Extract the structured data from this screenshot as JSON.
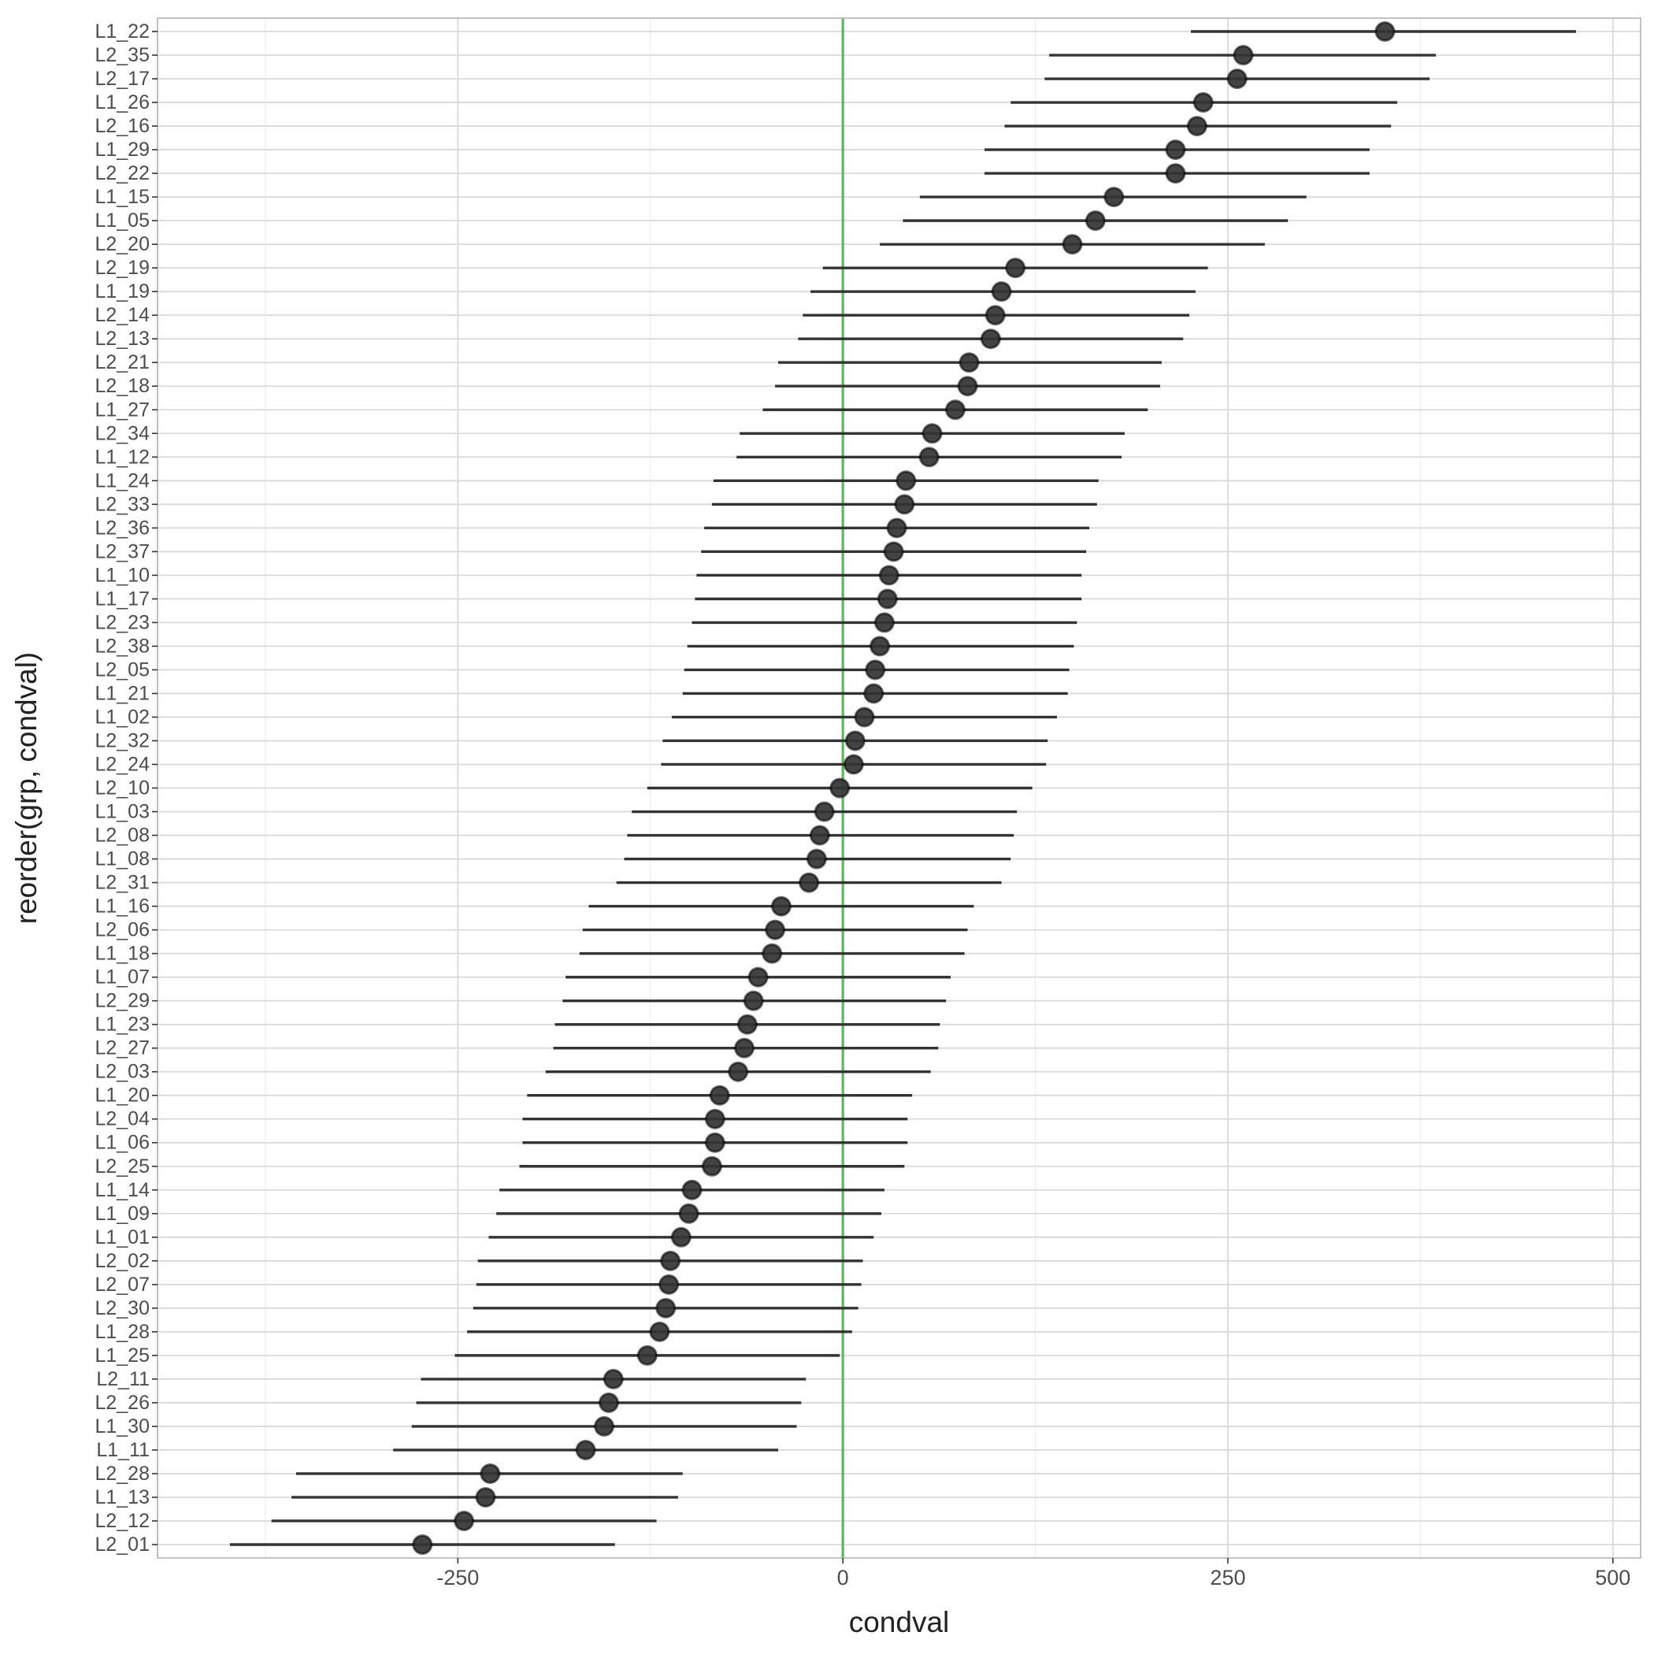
{
  "chart_data": {
    "type": "scatter",
    "subtype": "caterpillar / forest plot with horizontal interval bars",
    "title": "",
    "xlabel": "condval",
    "ylabel": "reorder(grp, condval)",
    "xlim": [
      -445,
      518
    ],
    "xticks": [
      -250,
      0,
      250,
      500
    ],
    "xtick_labels": [
      "-250",
      "0",
      "250",
      "500"
    ],
    "reference_line": {
      "x": 0,
      "color": "#5cb85c"
    },
    "grid": true,
    "legend": "none",
    "colors": {
      "point": "#333333",
      "interval": "#333333",
      "grid": "#d9d9d9",
      "panel_border": "#b3b3b3",
      "text": "#222222",
      "tick_text": "#4d4d4d",
      "reference": "#5cb85c"
    },
    "groups": [
      {
        "grp": "L1_22",
        "condval": 352,
        "lower": 226,
        "upper": 476
      },
      {
        "grp": "L2_35",
        "condval": 260,
        "lower": 134,
        "upper": 385
      },
      {
        "grp": "L2_17",
        "condval": 256,
        "lower": 131,
        "upper": 381
      },
      {
        "grp": "L1_26",
        "condval": 234,
        "lower": 109,
        "upper": 360
      },
      {
        "grp": "L2_16",
        "condval": 230,
        "lower": 105,
        "upper": 356
      },
      {
        "grp": "L1_29",
        "condval": 216,
        "lower": 92,
        "upper": 342
      },
      {
        "grp": "L2_22",
        "condval": 216,
        "lower": 92,
        "upper": 342
      },
      {
        "grp": "L1_15",
        "condval": 176,
        "lower": 50,
        "upper": 301
      },
      {
        "grp": "L1_05",
        "condval": 164,
        "lower": 39,
        "upper": 289
      },
      {
        "grp": "L2_20",
        "condval": 149,
        "lower": 24,
        "upper": 274
      },
      {
        "grp": "L2_19",
        "condval": 112,
        "lower": -13,
        "upper": 237
      },
      {
        "grp": "L1_19",
        "condval": 103,
        "lower": -21,
        "upper": 229
      },
      {
        "grp": "L2_14",
        "condval": 99,
        "lower": -26,
        "upper": 225
      },
      {
        "grp": "L2_13",
        "condval": 96,
        "lower": -29,
        "upper": 221
      },
      {
        "grp": "L2_21",
        "condval": 82,
        "lower": -42,
        "upper": 207
      },
      {
        "grp": "L2_18",
        "condval": 81,
        "lower": -44,
        "upper": 206
      },
      {
        "grp": "L1_27",
        "condval": 73,
        "lower": -52,
        "upper": 198
      },
      {
        "grp": "L2_34",
        "condval": 58,
        "lower": -67,
        "upper": 183
      },
      {
        "grp": "L1_12",
        "condval": 56,
        "lower": -69,
        "upper": 181
      },
      {
        "grp": "L1_24",
        "condval": 41,
        "lower": -84,
        "upper": 166
      },
      {
        "grp": "L2_33",
        "condval": 40,
        "lower": -85,
        "upper": 165
      },
      {
        "grp": "L2_36",
        "condval": 35,
        "lower": -90,
        "upper": 160
      },
      {
        "grp": "L2_37",
        "condval": 33,
        "lower": -92,
        "upper": 158
      },
      {
        "grp": "L1_10",
        "condval": 30,
        "lower": -95,
        "upper": 155
      },
      {
        "grp": "L1_17",
        "condval": 29,
        "lower": -96,
        "upper": 155
      },
      {
        "grp": "L2_23",
        "condval": 27,
        "lower": -98,
        "upper": 152
      },
      {
        "grp": "L2_38",
        "condval": 24,
        "lower": -101,
        "upper": 150
      },
      {
        "grp": "L2_05",
        "condval": 21,
        "lower": -103,
        "upper": 147
      },
      {
        "grp": "L1_21",
        "condval": 20,
        "lower": -104,
        "upper": 146
      },
      {
        "grp": "L1_02",
        "condval": 14,
        "lower": -111,
        "upper": 139
      },
      {
        "grp": "L2_32",
        "condval": 8,
        "lower": -117,
        "upper": 133
      },
      {
        "grp": "L2_24",
        "condval": 7,
        "lower": -118,
        "upper": 132
      },
      {
        "grp": "L2_10",
        "condval": -2,
        "lower": -127,
        "upper": 123
      },
      {
        "grp": "L1_03",
        "condval": -12,
        "lower": -137,
        "upper": 113
      },
      {
        "grp": "L2_08",
        "condval": -15,
        "lower": -140,
        "upper": 111
      },
      {
        "grp": "L1_08",
        "condval": -17,
        "lower": -142,
        "upper": 109
      },
      {
        "grp": "L2_31",
        "condval": -22,
        "lower": -147,
        "upper": 103
      },
      {
        "grp": "L1_16",
        "condval": -40,
        "lower": -165,
        "upper": 85
      },
      {
        "grp": "L2_06",
        "condval": -44,
        "lower": -169,
        "upper": 81
      },
      {
        "grp": "L1_18",
        "condval": -46,
        "lower": -171,
        "upper": 79
      },
      {
        "grp": "L1_07",
        "condval": -55,
        "lower": -180,
        "upper": 70
      },
      {
        "grp": "L2_29",
        "condval": -58,
        "lower": -182,
        "upper": 67
      },
      {
        "grp": "L1_23",
        "condval": -62,
        "lower": -187,
        "upper": 63
      },
      {
        "grp": "L2_27",
        "condval": -64,
        "lower": -188,
        "upper": 62
      },
      {
        "grp": "L2_03",
        "condval": -68,
        "lower": -193,
        "upper": 57
      },
      {
        "grp": "L1_20",
        "condval": -80,
        "lower": -205,
        "upper": 45
      },
      {
        "grp": "L2_04",
        "condval": -83,
        "lower": -208,
        "upper": 42
      },
      {
        "grp": "L1_06",
        "condval": -83,
        "lower": -208,
        "upper": 42
      },
      {
        "grp": "L2_25",
        "condval": -85,
        "lower": -210,
        "upper": 40
      },
      {
        "grp": "L1_14",
        "condval": -98,
        "lower": -223,
        "upper": 27
      },
      {
        "grp": "L1_09",
        "condval": -100,
        "lower": -225,
        "upper": 25
      },
      {
        "grp": "L1_01",
        "condval": -105,
        "lower": -230,
        "upper": 20
      },
      {
        "grp": "L2_02",
        "condval": -112,
        "lower": -237,
        "upper": 13
      },
      {
        "grp": "L2_07",
        "condval": -113,
        "lower": -238,
        "upper": 12
      },
      {
        "grp": "L2_30",
        "condval": -115,
        "lower": -240,
        "upper": 10
      },
      {
        "grp": "L1_28",
        "condval": -119,
        "lower": -244,
        "upper": 6
      },
      {
        "grp": "L1_25",
        "condval": -127,
        "lower": -252,
        "upper": -2
      },
      {
        "grp": "L2_11",
        "condval": -149,
        "lower": -274,
        "upper": -24
      },
      {
        "grp": "L2_26",
        "condval": -152,
        "lower": -277,
        "upper": -27
      },
      {
        "grp": "L1_30",
        "condval": -155,
        "lower": -280,
        "upper": -30
      },
      {
        "grp": "L1_11",
        "condval": -167,
        "lower": -292,
        "upper": -42
      },
      {
        "grp": "L2_28",
        "condval": -229,
        "lower": -355,
        "upper": -104
      },
      {
        "grp": "L1_13",
        "condval": -232,
        "lower": -358,
        "upper": -107
      },
      {
        "grp": "L2_12",
        "condval": -246,
        "lower": -371,
        "upper": -121
      },
      {
        "grp": "L2_01",
        "condval": -273,
        "lower": -398,
        "upper": -148
      }
    ]
  }
}
